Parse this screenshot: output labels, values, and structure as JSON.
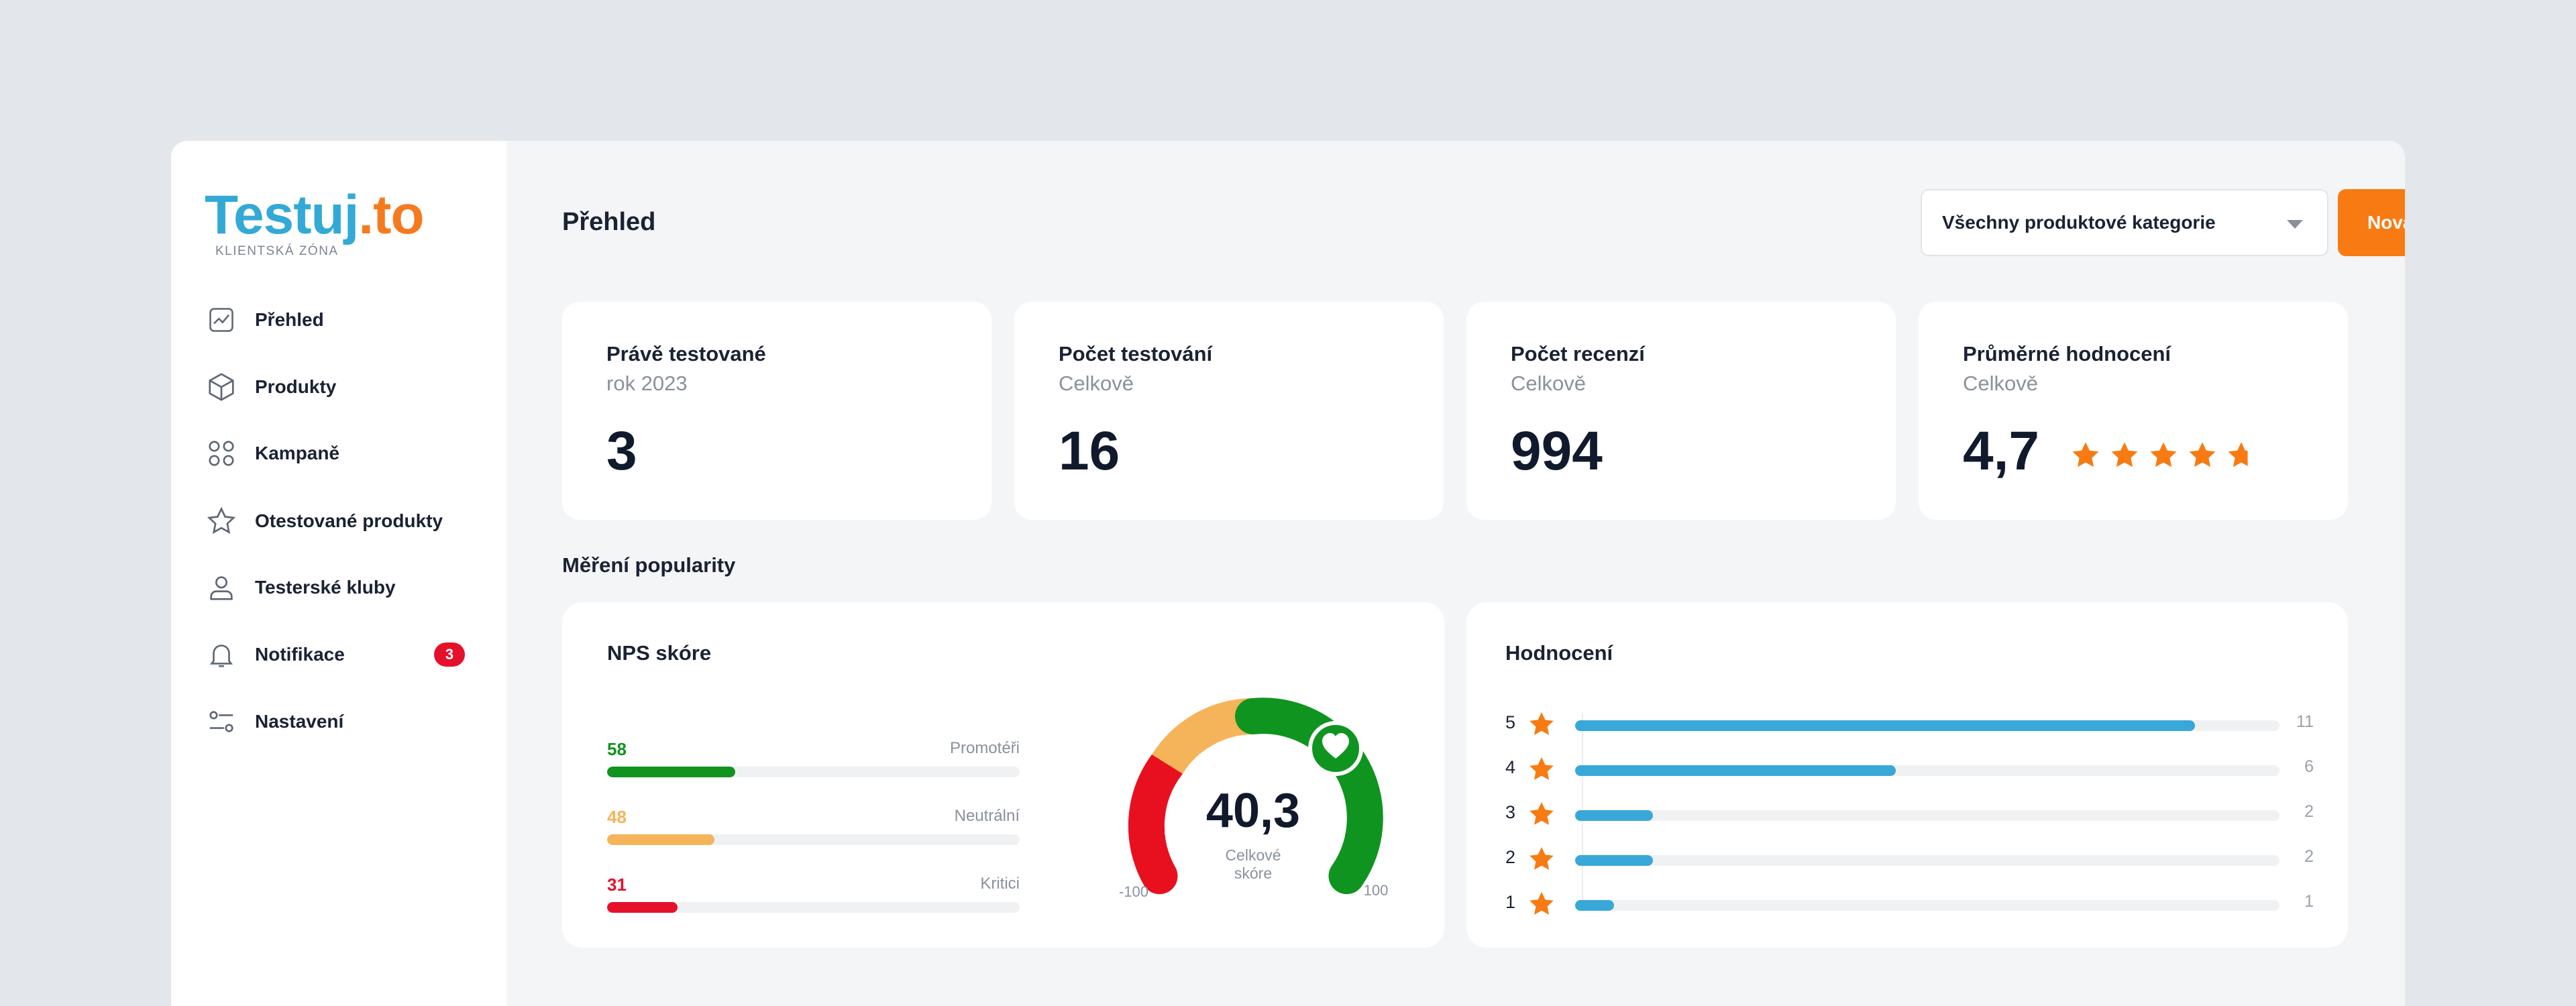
{
  "brand": {
    "logo_main": "Testuj",
    "logo_dot": ".to",
    "logo_sub": "KLIENTSKÁ ZÓNA",
    "accent": "#f77b12",
    "primary": "#38a8d8"
  },
  "sidebar": {
    "items": [
      {
        "label": "Přehled",
        "icon": "chart-line-icon"
      },
      {
        "label": "Produkty",
        "icon": "box-icon"
      },
      {
        "label": "Kampaně",
        "icon": "grid-circles-icon"
      },
      {
        "label": "Otestované produkty",
        "icon": "star-icon"
      },
      {
        "label": "Testerské kluby",
        "icon": "user-icon"
      },
      {
        "label": "Notifikace",
        "icon": "bell-icon",
        "badge": "3"
      },
      {
        "label": "Nastavení",
        "icon": "sliders-icon"
      }
    ]
  },
  "header": {
    "title": "Přehled",
    "category_select": "Všechny produktové kategorie",
    "new_button": "Nová kampaň"
  },
  "kpis": [
    {
      "title": "Právě testované",
      "sub": "rok 2023",
      "value": "3"
    },
    {
      "title": "Počet testování",
      "sub": "Celkově",
      "value": "16"
    },
    {
      "title": "Počet recenzí",
      "sub": "Celkově",
      "value": "994"
    },
    {
      "title": "Průměrné hodnocení",
      "sub": "Celkově",
      "value": "4,7",
      "stars": 4.7
    }
  ],
  "section_title": "Měření popularity",
  "nps": {
    "title": "NPS skóre",
    "rows": [
      {
        "value": "58",
        "label": "Promotéři",
        "color": "#10941e",
        "fraction": 0.31
      },
      {
        "value": "48",
        "label": "Neutrální",
        "color": "#f5b45a",
        "fraction": 0.26
      },
      {
        "value": "31",
        "label": "Kritici",
        "color": "#e5112a",
        "fraction": 0.17
      }
    ],
    "gauge": {
      "score": "40,3",
      "score_value": 40.3,
      "caption_1": "Celkové",
      "caption_2": "skóre",
      "min": "-100",
      "max": "100"
    }
  },
  "ratings": {
    "title": "Hodnocení",
    "rows": [
      {
        "stars": "5",
        "count": "11",
        "fraction": 0.88
      },
      {
        "stars": "4",
        "count": "6",
        "fraction": 0.455
      },
      {
        "stars": "3",
        "count": "2",
        "fraction": 0.11
      },
      {
        "stars": "2",
        "count": "2",
        "fraction": 0.11
      },
      {
        "stars": "1",
        "count": "1",
        "fraction": 0.055
      }
    ]
  }
}
